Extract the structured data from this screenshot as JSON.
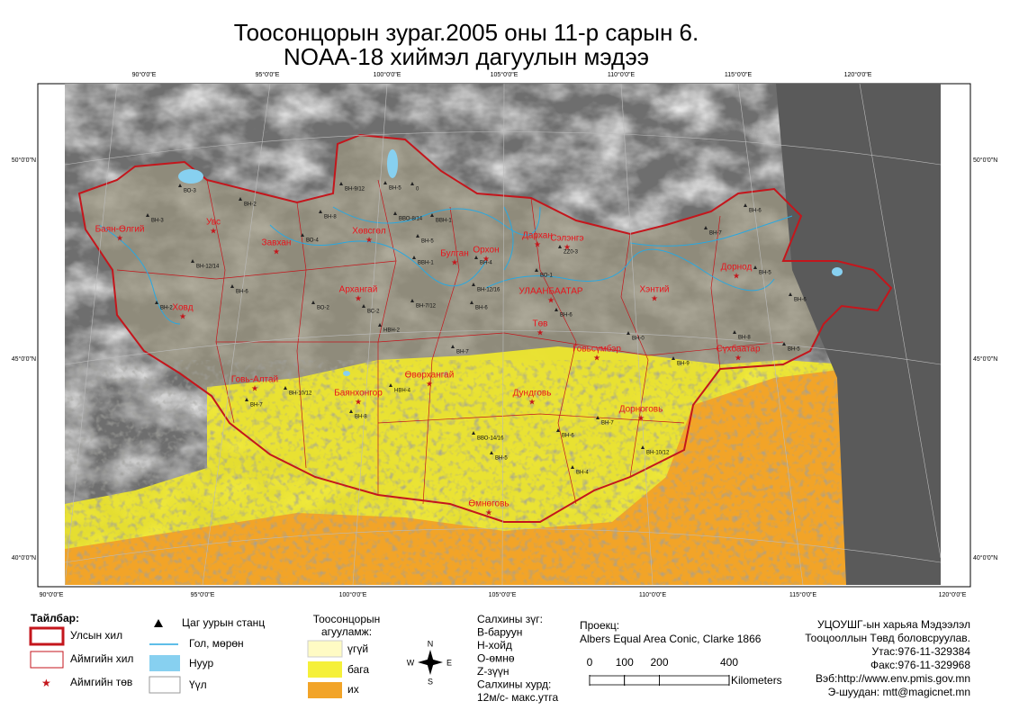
{
  "title": [
    "Тоосонцорын зураг.2005 оны 11-р сарын 6.",
    "NOAA-18 хиймэл дагуулын мэдээ"
  ],
  "graticule": {
    "top": [
      "90°0'0\"E",
      "95°0'0\"E",
      "100°0'0\"E",
      "105°0'0\"E",
      "110°0'0\"E",
      "115°0'0\"E",
      "120°0'0\"E"
    ],
    "bottom": [
      "90°0'0\"E",
      "95°0'0\"E",
      "100°0'0\"E",
      "105°0'0\"E",
      "110°0'0\"E",
      "115°0'0\"E",
      "120°0'0\"E"
    ],
    "left": [
      "50°0'0\"N",
      "45°0'0\"N",
      "40°0'0\"N"
    ],
    "right": [
      "50°0'0\"N",
      "45°0'0\"N",
      "40°0'0\"N"
    ]
  },
  "aimags": [
    "Баян-Өлгий",
    "Увс",
    "Ховд",
    "Завхан",
    "Говь-Алтай",
    "Хөвсгөл",
    "Архангай",
    "Булган",
    "Орхон",
    "Дархан",
    "Сэлэнгэ",
    "УЛААНБААТАР",
    "Төв",
    "Хэнтий",
    "Дорнод",
    "Сүхбаатар",
    "Говьсүмбэр",
    "Баянхонгор",
    "Өвөрхангай",
    "Дундговь",
    "Дорноговь",
    "Өмнөговь"
  ],
  "stations": [
    "ВН-9/12",
    "ВН-5",
    "0",
    "ВН-2",
    "ВО-3",
    "ВН-3",
    "ВН-12/14",
    "ВН-6",
    "ВН-8",
    "ВВО-8/14",
    "ВВН-1",
    "ВН-5",
    "ВО-4",
    "ВВН-1",
    "ZZ0-3",
    "ВН-4",
    "ВН-12/16",
    "ВО-2",
    "ВС-2",
    "НВН-2",
    "ВН-7/12",
    "ВН-6",
    "ВН-7",
    "ВО-1",
    "НВН-4",
    "ВН-8",
    "ВН-7",
    "ВН-6",
    "ВН-0",
    "ВВО-14/16",
    "ВН-6",
    "ВН-4",
    "ВН-10/12",
    "ВН-5",
    "ВН-2",
    "ВН-7",
    "ВН-9",
    "ВН-10/12",
    "ВН-5",
    "ВН-6",
    "ВН-7",
    "ВН-8",
    "ВН-6",
    "ВН-5"
  ],
  "legend": {
    "heading": "Тайлбар:",
    "items": [
      "Улсын хил",
      "Аймгийн хил",
      "Аймгийн төв",
      "Цаг уурын станц",
      "Гол, мөрөн",
      "Нуур",
      "Үүл"
    ],
    "dust_title": "Тоосонцорын агууламж:",
    "dust_levels": [
      "үгүй",
      "бага",
      "их"
    ]
  },
  "compass": [
    "N",
    "S",
    "W",
    "E"
  ],
  "wind": [
    "Салхины зүг:",
    "В-баруун",
    "Н-хойд",
    "О-өмнө",
    "Z-зүүн",
    "Салхины хурд:",
    "12м/с- макс.утга"
  ],
  "projection": [
    "Проекц:",
    "Albers Equal Area Conic, Clarke 1866"
  ],
  "scale": {
    "ticks": [
      0,
      100,
      200,
      400
    ],
    "unit": "Kilometers"
  },
  "credits": [
    "УЦОУШГ-ын харьяа Мэдээлэл",
    "Тооцооллын Төвд боловсруулав.",
    "Утас:976-11-329384",
    "Факс:976-11-329968",
    "Вэб:http://www.env.pmis.gov.mn",
    "Э-шуудан: mtt@magicnet.mn"
  ]
}
